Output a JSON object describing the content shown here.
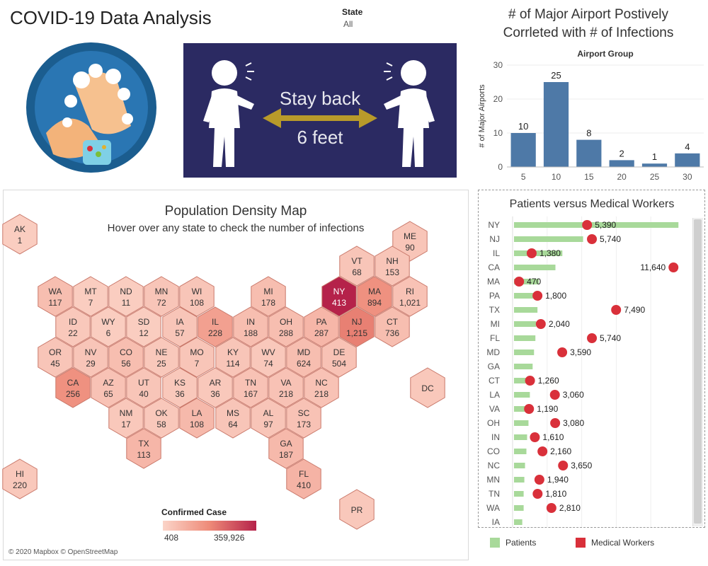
{
  "header": {
    "title": "COVID-19 Data Analysis",
    "filter_label": "State",
    "filter_value": "All"
  },
  "banner": {
    "line1": "Stay back",
    "line2": "6 feet"
  },
  "colors": {
    "bar": "#4e79a7",
    "patients": "#a8d99a",
    "medical_workers": "#d9303a",
    "banner_bg": "#2b2a62",
    "arrow": "#b89a2a"
  },
  "airport": {
    "title_line1": "# of Major Airport Postively",
    "title_line2": "Corrleted with # of Infections"
  },
  "map": {
    "title": "Population Density Map",
    "subtitle": "Hover over any state to check the number of infections",
    "legend_title": "Confirmed Case",
    "legend_min": "408",
    "legend_max": "359,926",
    "attribution": "© 2020 Mapbox © OpenStreetMap",
    "states": [
      {
        "code": "AK",
        "value": "1",
        "intensity": 0.05
      },
      {
        "code": "ME",
        "value": "90",
        "intensity": 0.1
      },
      {
        "code": "VT",
        "value": "68",
        "intensity": 0.1
      },
      {
        "code": "NH",
        "value": "153",
        "intensity": 0.1
      },
      {
        "code": "WA",
        "value": "117",
        "intensity": 0.15
      },
      {
        "code": "MT",
        "value": "7",
        "intensity": 0.05
      },
      {
        "code": "ND",
        "value": "11",
        "intensity": 0.05
      },
      {
        "code": "MN",
        "value": "72",
        "intensity": 0.1
      },
      {
        "code": "WI",
        "value": "108",
        "intensity": 0.1
      },
      {
        "code": "MI",
        "value": "178",
        "intensity": 0.15
      },
      {
        "code": "NY",
        "value": "413",
        "intensity": 1.0
      },
      {
        "code": "MA",
        "value": "894",
        "intensity": 0.45
      },
      {
        "code": "RI",
        "value": "1,021",
        "intensity": 0.12
      },
      {
        "code": "ID",
        "value": "22",
        "intensity": 0.08
      },
      {
        "code": "WY",
        "value": "6",
        "intensity": 0.05
      },
      {
        "code": "SD",
        "value": "12",
        "intensity": 0.05
      },
      {
        "code": "IA",
        "value": "57",
        "intensity": 0.1
      },
      {
        "code": "IL",
        "value": "228",
        "intensity": 0.35
      },
      {
        "code": "IN",
        "value": "188",
        "intensity": 0.15
      },
      {
        "code": "OH",
        "value": "288",
        "intensity": 0.15
      },
      {
        "code": "PA",
        "value": "287",
        "intensity": 0.2
      },
      {
        "code": "NJ",
        "value": "1,215",
        "intensity": 0.55
      },
      {
        "code": "CT",
        "value": "736",
        "intensity": 0.15
      },
      {
        "code": "OR",
        "value": "45",
        "intensity": 0.1
      },
      {
        "code": "NV",
        "value": "29",
        "intensity": 0.1
      },
      {
        "code": "CO",
        "value": "56",
        "intensity": 0.15
      },
      {
        "code": "NE",
        "value": "25",
        "intensity": 0.08
      },
      {
        "code": "MO",
        "value": "7",
        "intensity": 0.1
      },
      {
        "code": "KY",
        "value": "114",
        "intensity": 0.1
      },
      {
        "code": "WV",
        "value": "74",
        "intensity": 0.08
      },
      {
        "code": "MD",
        "value": "624",
        "intensity": 0.15
      },
      {
        "code": "DE",
        "value": "504",
        "intensity": 0.12
      },
      {
        "code": "CA",
        "value": "256",
        "intensity": 0.45
      },
      {
        "code": "AZ",
        "value": "65",
        "intensity": 0.12
      },
      {
        "code": "UT",
        "value": "40",
        "intensity": 0.1
      },
      {
        "code": "KS",
        "value": "36",
        "intensity": 0.08
      },
      {
        "code": "AR",
        "value": "36",
        "intensity": 0.08
      },
      {
        "code": "TN",
        "value": "167",
        "intensity": 0.12
      },
      {
        "code": "VA",
        "value": "218",
        "intensity": 0.12
      },
      {
        "code": "NC",
        "value": "218",
        "intensity": 0.12
      },
      {
        "code": "DC",
        "value": "",
        "intensity": 0.08
      },
      {
        "code": "NM",
        "value": "17",
        "intensity": 0.08
      },
      {
        "code": "OK",
        "value": "58",
        "intensity": 0.08
      },
      {
        "code": "LA",
        "value": "108",
        "intensity": 0.18
      },
      {
        "code": "MS",
        "value": "64",
        "intensity": 0.1
      },
      {
        "code": "AL",
        "value": "97",
        "intensity": 0.1
      },
      {
        "code": "SC",
        "value": "173",
        "intensity": 0.12
      },
      {
        "code": "TX",
        "value": "113",
        "intensity": 0.2
      },
      {
        "code": "GA",
        "value": "187",
        "intensity": 0.18
      },
      {
        "code": "HI",
        "value": "220",
        "intensity": 0.08
      },
      {
        "code": "FL",
        "value": "410",
        "intensity": 0.22
      },
      {
        "code": "PR",
        "value": "",
        "intensity": 0.08
      }
    ]
  },
  "patients_workers": {
    "title": "Patients versus Medical Workers",
    "legend_patients": "Patients",
    "legend_workers": "Medical Workers"
  },
  "chart_data": [
    {
      "type": "bar",
      "title": "Airport Group",
      "ylabel": "# of Major Airports",
      "categories": [
        "5",
        "10",
        "15",
        "20",
        "25",
        "30"
      ],
      "values": [
        10,
        25,
        8,
        2,
        1,
        4
      ],
      "ylim": [
        0,
        30
      ],
      "yticks": [
        0,
        10,
        20,
        30
      ]
    },
    {
      "type": "bar",
      "title": "Patients versus Medical Workers",
      "categories": [
        "NY",
        "NJ",
        "IL",
        "CA",
        "MA",
        "PA",
        "TX",
        "MI",
        "FL",
        "MD",
        "GA",
        "CT",
        "LA",
        "VA",
        "OH",
        "IN",
        "CO",
        "NC",
        "MN",
        "TN",
        "WA",
        "IA"
      ],
      "series": [
        {
          "name": "Patients",
          "values": [
            12000,
            5100,
            3600,
            3100,
            1900,
            1850,
            1800,
            1700,
            1650,
            1550,
            1450,
            1300,
            1250,
            1200,
            1150,
            1050,
            1000,
            900,
            850,
            800,
            800,
            700
          ]
        },
        {
          "name": "Medical Workers",
          "values": [
            5390,
            5740,
            1380,
            11640,
            470,
            1800,
            7490,
            2040,
            5740,
            3590,
            null,
            1260,
            3060,
            1190,
            3080,
            1610,
            2160,
            3650,
            1940,
            1810,
            2810,
            null
          ]
        }
      ],
      "labels": [
        "5,390",
        "5,740",
        "1,380",
        "11,640",
        "470",
        "1,800",
        "7,490",
        "2,040",
        "5,740",
        "3,590",
        "",
        "1,260",
        "3,060",
        "1,190",
        "3,080",
        "1,610",
        "2,160",
        "3,650",
        "1,940",
        "1,810",
        "2,810",
        ""
      ],
      "xlim": [
        0,
        12500
      ]
    }
  ]
}
